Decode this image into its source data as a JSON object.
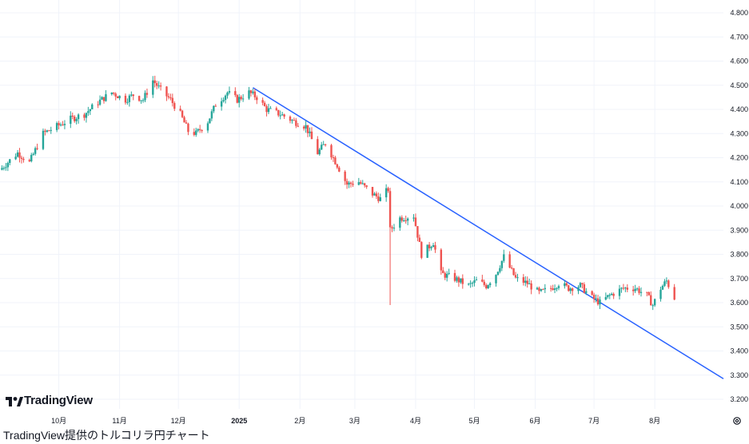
{
  "brand": {
    "name": "TradingView"
  },
  "caption": "TradingView提供のトルコリラ円チャート",
  "icons": {
    "logo": "tradingview-logo-icon",
    "settings": "gear-icon"
  },
  "colors": {
    "up": "#26a69a",
    "down": "#ef5350",
    "trendline": "#2962ff",
    "grid": "#f0f3fa"
  },
  "chart_data": {
    "type": "candlestick",
    "title": "",
    "xlabel": "",
    "ylabel": "",
    "ylim": [
      3.2,
      4.8
    ],
    "y_ticks": [
      "4.800",
      "4.700",
      "4.600",
      "4.500",
      "4.400",
      "4.300",
      "4.200",
      "4.100",
      "4.000",
      "3.900",
      "3.800",
      "3.700",
      "3.600",
      "3.500",
      "3.400",
      "3.300",
      "3.200"
    ],
    "x_ticks": [
      {
        "label": "10月",
        "x": "2024-10-01"
      },
      {
        "label": "11月",
        "x": "2024-11-01"
      },
      {
        "label": "12月",
        "x": "2024-12-01"
      },
      {
        "label": "2025",
        "x": "2025-01-01",
        "bold": true
      },
      {
        "label": "2月",
        "x": "2025-02-01"
      },
      {
        "label": "3月",
        "x": "2025-03-01"
      },
      {
        "label": "4月",
        "x": "2025-04-01"
      },
      {
        "label": "5月",
        "x": "2025-05-01"
      },
      {
        "label": "6月",
        "x": "2025-06-01"
      },
      {
        "label": "7月",
        "x": "2025-07-01"
      },
      {
        "label": "8月",
        "x": "2025-08-01"
      }
    ],
    "x_range": [
      "2024-09-01",
      "2025-09-05"
    ],
    "trendline": {
      "start": {
        "x": "2025-01-08",
        "y": 4.49
      },
      "end": {
        "x": "2025-09-05",
        "y": 3.285
      }
    },
    "grid": true,
    "close_path": [
      {
        "x": "2024-09-01",
        "y": 4.15
      },
      {
        "x": "2024-09-10",
        "y": 4.22
      },
      {
        "x": "2024-09-16",
        "y": 4.18
      },
      {
        "x": "2024-09-23",
        "y": 4.3
      },
      {
        "x": "2024-09-30",
        "y": 4.33
      },
      {
        "x": "2024-10-07",
        "y": 4.36
      },
      {
        "x": "2024-10-14",
        "y": 4.38
      },
      {
        "x": "2024-10-21",
        "y": 4.43
      },
      {
        "x": "2024-10-28",
        "y": 4.47
      },
      {
        "x": "2024-11-04",
        "y": 4.44
      },
      {
        "x": "2024-11-08",
        "y": 4.46
      },
      {
        "x": "2024-11-13",
        "y": 4.44
      },
      {
        "x": "2024-11-18",
        "y": 4.52
      },
      {
        "x": "2024-11-22",
        "y": 4.48
      },
      {
        "x": "2024-11-27",
        "y": 4.44
      },
      {
        "x": "2024-12-02",
        "y": 4.38
      },
      {
        "x": "2024-12-06",
        "y": 4.31
      },
      {
        "x": "2024-12-10",
        "y": 4.3
      },
      {
        "x": "2024-12-16",
        "y": 4.35
      },
      {
        "x": "2024-12-20",
        "y": 4.42
      },
      {
        "x": "2024-12-26",
        "y": 4.47
      },
      {
        "x": "2024-12-31",
        "y": 4.44
      },
      {
        "x": "2025-01-06",
        "y": 4.47
      },
      {
        "x": "2025-01-10",
        "y": 4.45
      },
      {
        "x": "2025-01-15",
        "y": 4.4
      },
      {
        "x": "2025-01-22",
        "y": 4.38
      },
      {
        "x": "2025-01-29",
        "y": 4.35
      },
      {
        "x": "2025-02-04",
        "y": 4.33
      },
      {
        "x": "2025-02-10",
        "y": 4.22
      },
      {
        "x": "2025-02-14",
        "y": 4.26
      },
      {
        "x": "2025-02-20",
        "y": 4.17
      },
      {
        "x": "2025-02-25",
        "y": 4.09
      },
      {
        "x": "2025-03-03",
        "y": 4.1
      },
      {
        "x": "2025-03-10",
        "y": 4.05
      },
      {
        "x": "2025-03-14",
        "y": 4.03
      },
      {
        "x": "2025-03-18",
        "y": 4.07
      },
      {
        "x": "2025-03-19",
        "y": 3.9
      },
      {
        "x": "2025-03-24",
        "y": 3.95
      },
      {
        "x": "2025-03-31",
        "y": 3.96
      },
      {
        "x": "2025-04-04",
        "y": 3.8
      },
      {
        "x": "2025-04-10",
        "y": 3.85
      },
      {
        "x": "2025-04-14",
        "y": 3.72
      },
      {
        "x": "2025-04-21",
        "y": 3.7
      },
      {
        "x": "2025-04-28",
        "y": 3.67
      },
      {
        "x": "2025-05-02",
        "y": 3.69
      },
      {
        "x": "2025-05-07",
        "y": 3.67
      },
      {
        "x": "2025-05-12",
        "y": 3.72
      },
      {
        "x": "2025-05-16",
        "y": 3.79
      },
      {
        "x": "2025-05-22",
        "y": 3.7
      },
      {
        "x": "2025-05-28",
        "y": 3.68
      },
      {
        "x": "2025-06-03",
        "y": 3.64
      },
      {
        "x": "2025-06-09",
        "y": 3.66
      },
      {
        "x": "2025-06-13",
        "y": 3.68
      },
      {
        "x": "2025-06-18",
        "y": 3.66
      },
      {
        "x": "2025-06-24",
        "y": 3.67
      },
      {
        "x": "2025-06-30",
        "y": 3.62
      },
      {
        "x": "2025-07-04",
        "y": 3.6
      },
      {
        "x": "2025-07-09",
        "y": 3.63
      },
      {
        "x": "2025-07-16",
        "y": 3.66
      },
      {
        "x": "2025-07-22",
        "y": 3.66
      },
      {
        "x": "2025-07-28",
        "y": 3.63
      },
      {
        "x": "2025-07-31",
        "y": 3.59
      },
      {
        "x": "2025-08-04",
        "y": 3.66
      },
      {
        "x": "2025-08-07",
        "y": 3.69
      },
      {
        "x": "2025-08-11",
        "y": 3.62
      }
    ],
    "spikes": [
      {
        "x": "2025-03-19",
        "low": 3.59
      }
    ]
  }
}
